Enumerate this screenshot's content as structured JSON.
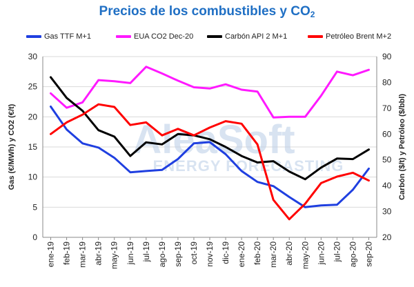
{
  "title": {
    "main": "Precios de los combustibles y CO",
    "sub": "2"
  },
  "watermark": {
    "brand": "AleaSoft",
    "tagline": "ENERGY FORECASTING"
  },
  "colors": {
    "gas": "#1f3fe0",
    "eua": "#ff19ff",
    "coal": "#000000",
    "brent": "#ff0000",
    "grid": "#d9d9d9",
    "title": "#1f6fc4",
    "watermark": "#b9cde6"
  },
  "chart_data": {
    "type": "line",
    "categories": [
      "ene-19",
      "feb-19",
      "mar-19",
      "abr-19",
      "may-19",
      "jun-19",
      "jul-19",
      "ago-19",
      "sep-19",
      "oct-19",
      "nov-19",
      "dic-19",
      "ene-20",
      "feb-20",
      "mar-20",
      "abr-20",
      "may-20",
      "jun-20",
      "jul-20",
      "ago-20",
      "sep-20"
    ],
    "y_left": {
      "label": "Gas (€/MWh) y CO2 (€/t)",
      "range": [
        0,
        30
      ],
      "ticks": [
        0,
        5,
        10,
        15,
        20,
        25,
        30
      ]
    },
    "y_right": {
      "label": "Carbón ($/t) y Petróleo ($/bbl)",
      "range": [
        20,
        90
      ],
      "ticks": [
        20,
        30,
        40,
        50,
        60,
        70,
        80,
        90
      ]
    },
    "grid": true,
    "legend_position": "top",
    "series": [
      {
        "key": "gas",
        "name": "Gas TTF M+1",
        "axis": "left",
        "values": [
          21.7,
          17.9,
          15.6,
          14.9,
          13.2,
          10.8,
          11.0,
          11.2,
          13.0,
          15.6,
          15.8,
          13.8,
          11.0,
          9.2,
          8.5,
          6.7,
          5.0,
          5.3,
          5.4,
          7.9,
          11.4
        ]
      },
      {
        "key": "eua",
        "name": "EUA CO2 Dec-20",
        "axis": "left",
        "values": [
          23.9,
          21.5,
          22.4,
          26.1,
          25.9,
          25.6,
          28.3,
          27.2,
          26.0,
          24.9,
          24.7,
          25.4,
          24.5,
          24.2,
          19.9,
          20.0,
          20.0,
          23.5,
          27.5,
          26.9,
          27.8
        ]
      },
      {
        "key": "coal",
        "name": "Carbón API 2 M+1",
        "axis": "right",
        "values": [
          82.0,
          74.0,
          69.0,
          61.5,
          59.0,
          51.5,
          56.8,
          56.0,
          60.0,
          59.5,
          58.0,
          55.0,
          51.5,
          49.0,
          49.5,
          45.5,
          42.5,
          47.0,
          50.5,
          50.3,
          54.0
        ]
      },
      {
        "key": "brent",
        "name": "Petróleo Brent M+2",
        "axis": "right",
        "values": [
          60.0,
          64.5,
          67.5,
          71.5,
          70.5,
          63.5,
          64.5,
          59.5,
          62.0,
          59.5,
          62.5,
          65.0,
          64.0,
          56.0,
          34.5,
          27.0,
          33.0,
          41.0,
          43.5,
          45.0,
          42.0
        ]
      }
    ]
  }
}
